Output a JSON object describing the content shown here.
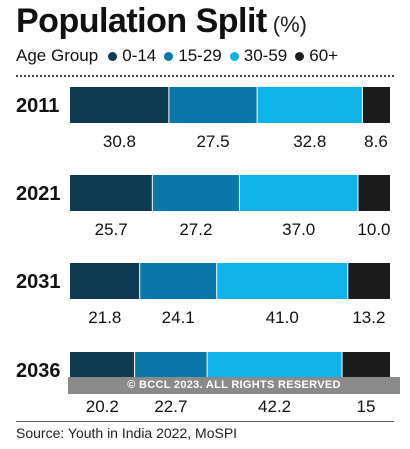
{
  "title": "Population Split",
  "unit": "(%)",
  "legend_label": "Age Group",
  "source": "Source: Youth in India 2022, MoSPI",
  "watermark": "© BCCL 2023. ALL RIGHTS RESERVED",
  "colors": {
    "0-14": "#0e3a52",
    "15-29": "#0b77a8",
    "30-59": "#10b2ea",
    "60+": "#1c1c1c"
  },
  "chart_data": {
    "type": "bar",
    "orientation": "horizontal",
    "stacked": true,
    "categories": [
      "2011",
      "2021",
      "2031",
      "2036"
    ],
    "series": [
      {
        "name": "0-14",
        "values": [
          30.8,
          25.7,
          21.8,
          20.2
        ],
        "labels": [
          "30.8",
          "25.7",
          "21.8",
          "20.2"
        ]
      },
      {
        "name": "15-29",
        "values": [
          27.5,
          27.2,
          24.1,
          22.7
        ],
        "labels": [
          "27.5",
          "27.2",
          "24.1",
          "22.7"
        ]
      },
      {
        "name": "30-59",
        "values": [
          32.8,
          37.0,
          41.0,
          42.2
        ],
        "labels": [
          "32.8",
          "37.0",
          "41.0",
          "42.2"
        ]
      },
      {
        "name": "60+",
        "values": [
          8.6,
          10.0,
          13.2,
          15
        ],
        "labels": [
          "8.6",
          "10.0",
          "13.2",
          "15"
        ]
      }
    ],
    "xlim": [
      0,
      100
    ],
    "title": "Population Split",
    "xlabel": "",
    "ylabel": ""
  }
}
